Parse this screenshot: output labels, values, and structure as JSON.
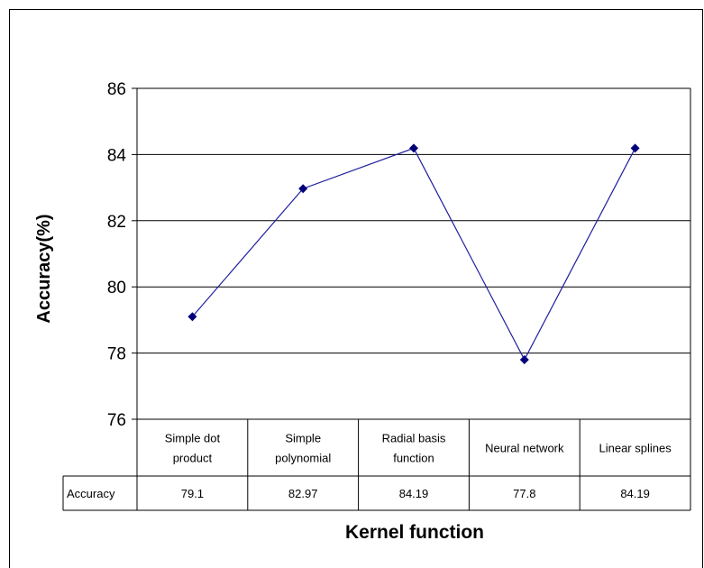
{
  "chart_data": {
    "type": "line",
    "xlabel": "Kernel function",
    "ylabel": "Accuracy(%)",
    "ylim": [
      76,
      86
    ],
    "yticks": [
      76,
      78,
      80,
      82,
      84,
      86
    ],
    "grid": true,
    "categories": [
      [
        "Simple dot",
        "product"
      ],
      [
        "Simple",
        "polynomial"
      ],
      [
        "Radial basis",
        "function"
      ],
      [
        "Neural network"
      ],
      [
        "Linear splines"
      ]
    ],
    "series": [
      {
        "name": "Accuracy",
        "values": [
          79.1,
          82.97,
          84.19,
          77.8,
          84.19
        ],
        "labels": [
          "79.1",
          "82.97",
          "84.19",
          "77.8",
          "84.19"
        ],
        "color": "#1f1f9e",
        "marker_color": "#00007a"
      }
    ]
  }
}
